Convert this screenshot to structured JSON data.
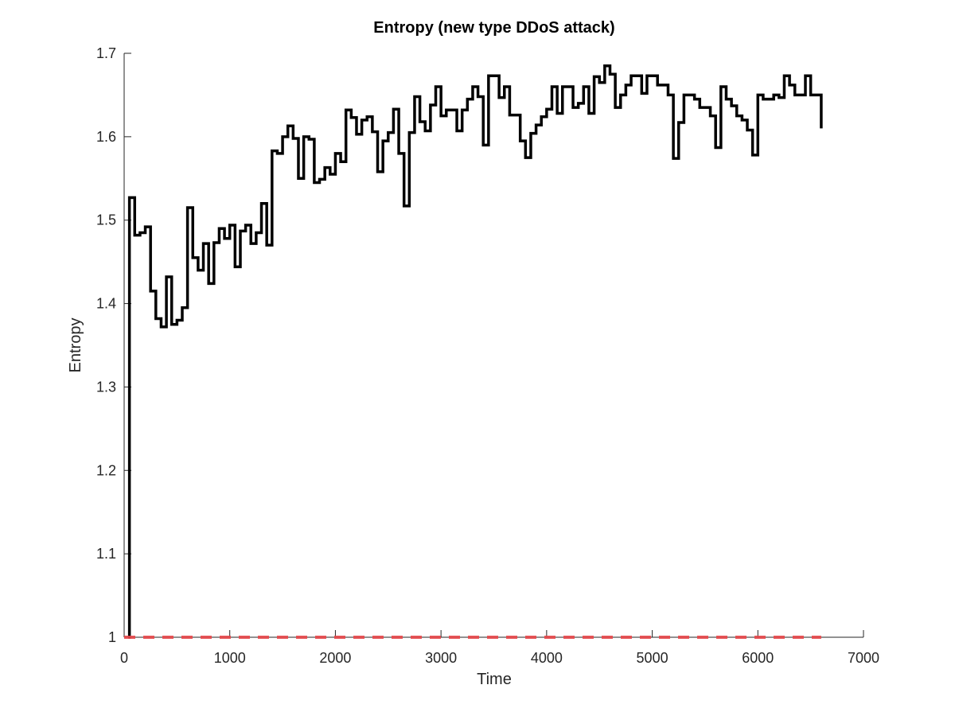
{
  "chart_data": {
    "type": "line",
    "title": "Entropy (new type DDoS attack)",
    "xlabel": "Time",
    "ylabel": "Entropy",
    "xlim": [
      0,
      7000
    ],
    "ylim": [
      1,
      1.7
    ],
    "xticks": [
      0,
      1000,
      2000,
      3000,
      4000,
      5000,
      6000,
      7000
    ],
    "xtick_labels": [
      "0",
      "1000",
      "2000",
      "3000",
      "4000",
      "5000",
      "6000",
      "7000"
    ],
    "yticks": [
      1,
      1.1,
      1.2,
      1.3,
      1.4,
      1.5,
      1.6,
      1.7
    ],
    "ytick_labels": [
      "1",
      "1.1",
      "1.2",
      "1.3",
      "1.4",
      "1.5",
      "1.6",
      "1.7"
    ],
    "grid": false,
    "legend": "none",
    "series": [
      {
        "style": "stairs",
        "color": "#000000",
        "line": "solid",
        "x": [
          40,
          50,
          100,
          150,
          200,
          250,
          300,
          350,
          400,
          450,
          500,
          550,
          600,
          650,
          700,
          750,
          800,
          850,
          900,
          950,
          1000,
          1050,
          1100,
          1150,
          1200,
          1250,
          1300,
          1350,
          1400,
          1450,
          1500,
          1550,
          1600,
          1650,
          1700,
          1750,
          1800,
          1850,
          1900,
          1950,
          2000,
          2050,
          2100,
          2150,
          2200,
          2250,
          2300,
          2350,
          2400,
          2450,
          2500,
          2550,
          2600,
          2650,
          2700,
          2750,
          2800,
          2850,
          2900,
          2950,
          3000,
          3050,
          3100,
          3150,
          3200,
          3250,
          3300,
          3350,
          3400,
          3450,
          3500,
          3550,
          3600,
          3650,
          3700,
          3750,
          3800,
          3850,
          3900,
          3950,
          4000,
          4050,
          4100,
          4150,
          4200,
          4250,
          4300,
          4350,
          4400,
          4450,
          4500,
          4550,
          4600,
          4650,
          4700,
          4750,
          4800,
          4850,
          4900,
          4950,
          5000,
          5050,
          5100,
          5150,
          5200,
          5250,
          5300,
          5350,
          5400,
          5450,
          5500,
          5550,
          5600,
          5650,
          5700,
          5750,
          5800,
          5850,
          5900,
          5950,
          6000,
          6050,
          6100,
          6150,
          6200,
          6250,
          6300,
          6350,
          6400,
          6450,
          6500,
          6550,
          6600
        ],
        "y": [
          1.0,
          1.527,
          1.482,
          1.485,
          1.492,
          1.415,
          1.382,
          1.372,
          1.432,
          1.375,
          1.38,
          1.395,
          1.515,
          1.455,
          1.44,
          1.472,
          1.424,
          1.473,
          1.49,
          1.478,
          1.494,
          1.444,
          1.487,
          1.494,
          1.472,
          1.485,
          1.52,
          1.47,
          1.583,
          1.58,
          1.6,
          1.613,
          1.598,
          1.55,
          1.6,
          1.597,
          1.545,
          1.549,
          1.563,
          1.555,
          1.58,
          1.57,
          1.632,
          1.623,
          1.603,
          1.62,
          1.624,
          1.606,
          1.558,
          1.595,
          1.605,
          1.633,
          1.58,
          1.517,
          1.605,
          1.648,
          1.618,
          1.607,
          1.638,
          1.66,
          1.625,
          1.632,
          1.632,
          1.607,
          1.632,
          1.645,
          1.66,
          1.648,
          1.59,
          1.673,
          1.673,
          1.647,
          1.66,
          1.626,
          1.626,
          1.595,
          1.575,
          1.604,
          1.614,
          1.624,
          1.633,
          1.66,
          1.628,
          1.66,
          1.66,
          1.635,
          1.64,
          1.66,
          1.628,
          1.672,
          1.665,
          1.685,
          1.675,
          1.635,
          1.65,
          1.662,
          1.673,
          1.673,
          1.652,
          1.673,
          1.673,
          1.662,
          1.662,
          1.65,
          1.574,
          1.617,
          1.65,
          1.65,
          1.645,
          1.635,
          1.635,
          1.625,
          1.587,
          1.66,
          1.645,
          1.637,
          1.625,
          1.62,
          1.608,
          1.578,
          1.65,
          1.645,
          1.645,
          1.65,
          1.647,
          1.673,
          1.662,
          1.65,
          1.65,
          1.673,
          1.65,
          1.65,
          1.61
        ]
      },
      {
        "style": "line",
        "color": "#e8474a",
        "line": "dashed",
        "x": [
          0,
          6600
        ],
        "y": [
          1.0,
          1.0
        ]
      }
    ]
  }
}
